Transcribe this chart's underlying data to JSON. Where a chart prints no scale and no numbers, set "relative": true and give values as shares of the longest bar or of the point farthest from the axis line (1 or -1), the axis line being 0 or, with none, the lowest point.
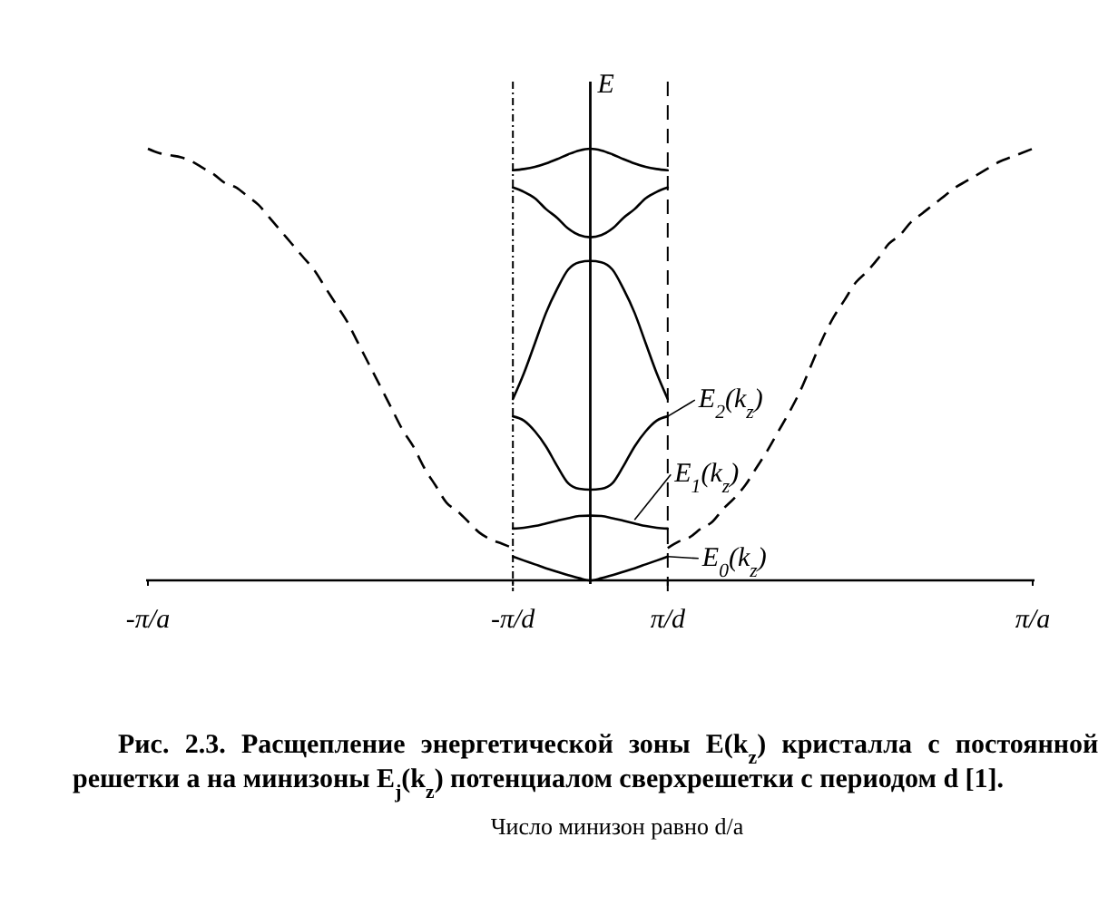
{
  "chart_data": {
    "type": "line",
    "relative": true,
    "title": "Рис. 2.3. Расщепление энергетической зоны E(k$_{z}$) кристалла с постоянной решетки a на минизоны E$_{j}$(k$_{z}$) потенциалом сверхрешетки с периодом d [1].",
    "subtitle": "Число минизон равно d/a",
    "ylabel": "E",
    "categories": [
      "-π/a",
      null,
      null,
      null,
      null,
      null,
      null,
      null,
      null,
      null,
      null,
      null,
      null,
      null,
      null,
      null,
      null,
      null,
      null,
      null,
      null,
      null,
      null,
      null,
      null,
      null,
      null,
      null,
      null,
      null,
      null,
      null,
      null,
      "-π/d",
      null,
      null,
      null,
      null,
      null,
      null,
      null,
      null,
      null,
      null,
      null,
      null,
      null,
      "π/d",
      null,
      null,
      null,
      null,
      null,
      null,
      null,
      null,
      null,
      null,
      null,
      null,
      null,
      null,
      null,
      null,
      null,
      null,
      null,
      null,
      null,
      null,
      null,
      null,
      null,
      null,
      null,
      null,
      null,
      null,
      null,
      null,
      "π/a"
    ],
    "tick_labels": "x",
    "series": [
      {
        "color": "#000000",
        "line_style": "dashed",
        "values": [
          1,
          0.99,
          0.985,
          0.98,
          0.97,
          0.955,
          0.94,
          0.92,
          0.91,
          0.89,
          0.87,
          0.84,
          0.81,
          0.78,
          0.75,
          0.72,
          0.68,
          0.64,
          0.6,
          0.55,
          0.5,
          0.45,
          0.4,
          0.35,
          0.31,
          0.26,
          0.22,
          0.18,
          0.16,
          0.135,
          0.11,
          0.095,
          0.085,
          0.075,
          null,
          null,
          null,
          null,
          null,
          null,
          null,
          null,
          null,
          null,
          null,
          null,
          null,
          0.075,
          0.09,
          0.1,
          0.12,
          0.135,
          0.165,
          0.19,
          0.22,
          0.26,
          0.3,
          0.345,
          0.39,
          0.44,
          0.5,
          0.56,
          0.61,
          0.65,
          0.69,
          0.715,
          0.745,
          0.78,
          0.8,
          0.83,
          0.85,
          0.87,
          0.89,
          0.91,
          0.925,
          0.94,
          0.955,
          0.97,
          0.98,
          0.99,
          1
        ]
      },
      {
        "color": "#000000",
        "values": [
          null,
          null,
          null,
          null,
          null,
          null,
          null,
          null,
          null,
          null,
          null,
          null,
          null,
          null,
          null,
          null,
          null,
          null,
          null,
          null,
          null,
          null,
          null,
          null,
          null,
          null,
          null,
          null,
          null,
          null,
          null,
          null,
          null,
          0.055,
          0.046,
          0.037,
          0.028,
          0.02,
          0.012,
          0.005,
          0,
          0.005,
          0.012,
          0.02,
          0.028,
          0.037,
          0.046,
          0.055,
          null,
          null,
          null,
          null,
          null,
          null,
          null,
          null,
          null,
          null,
          null,
          null,
          null,
          null,
          null,
          null,
          null,
          null,
          null,
          null,
          null,
          null,
          null,
          null,
          null,
          null,
          null,
          null,
          null,
          null,
          null,
          null,
          null
        ]
      },
      {
        "color": "#000000",
        "values": [
          null,
          null,
          null,
          null,
          null,
          null,
          null,
          null,
          null,
          null,
          null,
          null,
          null,
          null,
          null,
          null,
          null,
          null,
          null,
          null,
          null,
          null,
          null,
          null,
          null,
          null,
          null,
          null,
          null,
          null,
          null,
          null,
          null,
          0.12,
          0.122,
          0.126,
          0.132,
          0.138,
          0.144,
          0.149,
          0.15,
          0.149,
          0.144,
          0.138,
          0.132,
          0.126,
          0.122,
          0.12,
          null,
          null,
          null,
          null,
          null,
          null,
          null,
          null,
          null,
          null,
          null,
          null,
          null,
          null,
          null,
          null,
          null,
          null,
          null,
          null,
          null,
          null,
          null,
          null,
          null,
          null,
          null,
          null,
          null,
          null,
          null,
          null,
          null
        ]
      },
      {
        "color": "#000000",
        "values": [
          null,
          null,
          null,
          null,
          null,
          null,
          null,
          null,
          null,
          null,
          null,
          null,
          null,
          null,
          null,
          null,
          null,
          null,
          null,
          null,
          null,
          null,
          null,
          null,
          null,
          null,
          null,
          null,
          null,
          null,
          null,
          null,
          null,
          0.38,
          0.37,
          0.345,
          0.31,
          0.265,
          0.225,
          0.212,
          0.21,
          0.212,
          0.225,
          0.265,
          0.31,
          0.345,
          0.37,
          0.38,
          null,
          null,
          null,
          null,
          null,
          null,
          null,
          null,
          null,
          null,
          null,
          null,
          null,
          null,
          null,
          null,
          null,
          null,
          null,
          null,
          null,
          null,
          null,
          null,
          null,
          null,
          null,
          null,
          null,
          null,
          null,
          null,
          null
        ]
      },
      {
        "color": "#000000",
        "values": [
          null,
          null,
          null,
          null,
          null,
          null,
          null,
          null,
          null,
          null,
          null,
          null,
          null,
          null,
          null,
          null,
          null,
          null,
          null,
          null,
          null,
          null,
          null,
          null,
          null,
          null,
          null,
          null,
          null,
          null,
          null,
          null,
          null,
          0.42,
          0.48,
          0.55,
          0.62,
          0.675,
          0.72,
          0.737,
          0.74,
          0.737,
          0.72,
          0.675,
          0.62,
          0.55,
          0.48,
          0.42,
          null,
          null,
          null,
          null,
          null,
          null,
          null,
          null,
          null,
          null,
          null,
          null,
          null,
          null,
          null,
          null,
          null,
          null,
          null,
          null,
          null,
          null,
          null,
          null,
          null,
          null,
          null,
          null,
          null,
          null,
          null,
          null,
          null
        ]
      },
      {
        "color": "#000000",
        "values": [
          null,
          null,
          null,
          null,
          null,
          null,
          null,
          null,
          null,
          null,
          null,
          null,
          null,
          null,
          null,
          null,
          null,
          null,
          null,
          null,
          null,
          null,
          null,
          null,
          null,
          null,
          null,
          null,
          null,
          null,
          null,
          null,
          null,
          0.91,
          0.9,
          0.885,
          0.86,
          0.84,
          0.815,
          0.8,
          0.795,
          0.8,
          0.815,
          0.84,
          0.86,
          0.885,
          0.9,
          0.91,
          null,
          null,
          null,
          null,
          null,
          null,
          null,
          null,
          null,
          null,
          null,
          null,
          null,
          null,
          null,
          null,
          null,
          null,
          null,
          null,
          null,
          null,
          null,
          null,
          null,
          null,
          null,
          null,
          null,
          null,
          null,
          null,
          null
        ]
      },
      {
        "color": "#000000",
        "values": [
          null,
          null,
          null,
          null,
          null,
          null,
          null,
          null,
          null,
          null,
          null,
          null,
          null,
          null,
          null,
          null,
          null,
          null,
          null,
          null,
          null,
          null,
          null,
          null,
          null,
          null,
          null,
          null,
          null,
          null,
          null,
          null,
          null,
          0.95,
          0.953,
          0.958,
          0.966,
          0.976,
          0.987,
          0.996,
          1,
          0.996,
          0.987,
          0.976,
          0.966,
          0.958,
          0.953,
          0.95,
          null,
          null,
          null,
          null,
          null,
          null,
          null,
          null,
          null,
          null,
          null,
          null,
          null,
          null,
          null,
          null,
          null,
          null,
          null,
          null,
          null,
          null,
          null,
          null,
          null,
          null,
          null,
          null,
          null,
          null,
          null,
          null,
          null
        ]
      }
    ],
    "ref_lines": [
      {
        "axis": "x",
        "value": "-π/d",
        "line_style": "dotted"
      },
      {
        "axis": "x",
        "value": "π/d",
        "line_style": "dashed"
      }
    ],
    "annotations": [
      {
        "text": "E$_{2}$(k$_{z}$)",
        "x": "π/d",
        "y": 0.38
      },
      {
        "text": "E$_{1}$(k$_{z}$)",
        "y": 0.14
      },
      {
        "text": "E$_{0}$(k$_{z}$)",
        "x": "π/d",
        "y": 0.055
      }
    ]
  }
}
